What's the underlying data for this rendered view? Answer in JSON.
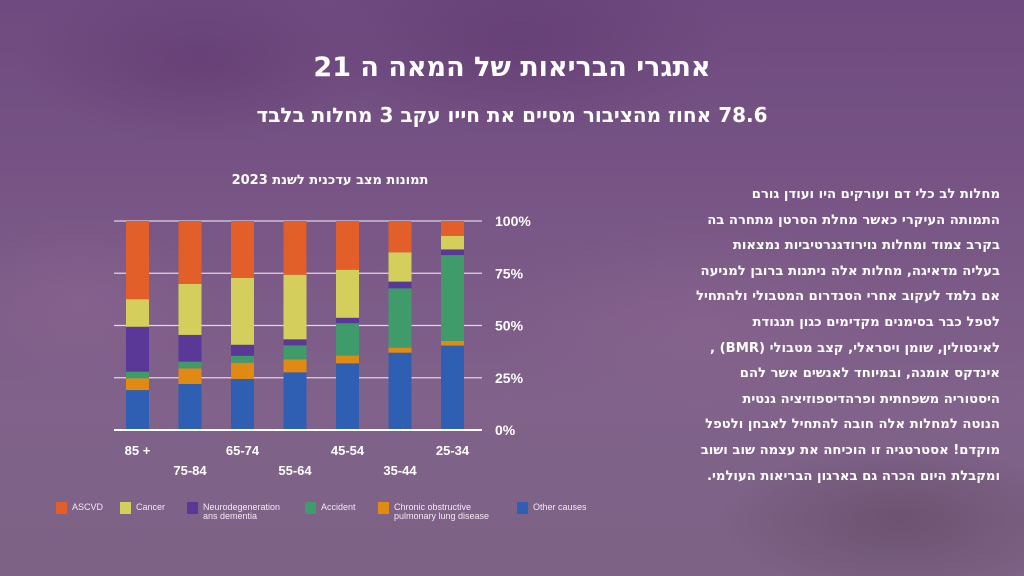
{
  "header": {
    "title": "אתגרי הבריאות של המאה ה 21",
    "subtitle": "78.6 אחוז מהציבור מסיים את חייו עקב 3 מחלות בלבד"
  },
  "paragraph": {
    "lines": [
      "מחלות לב כלי דם ועורקים היו ועודן גורם",
      "התמותה העיקרי כאשר מחלת הסרטן מתחרה בה",
      "בקרב צמוד ומחלות נוירודגנרטיביות נמצאות",
      "בעליה מדאיגה, מחלות אלה ניתנות ברובן למניעה",
      "אם נלמד לעקוב אחרי הסנדרום המטבולי ולהתחיל",
      "לטפל כבר בסימנים מקדימים כגון תנגודת",
      "לאינסולין, שומן ויסראלי, קצב מטבולי (BMR) ,",
      "אינדקס אומגה, ובמיוחד לאנשים אשר להם",
      "היסטוריה משפחתית ופרהדיספוזיציה גנטית",
      "הנוטה למחלות אלה חובה להתחיל לאבחן ולטפל",
      "מוקדם! אסטרטגיה זו הוכיחה את עצמה שוב ושוב",
      "ומקבלת היום הכרה גם בארגון הבריאות העולמי."
    ]
  },
  "chart_data": {
    "type": "bar",
    "stacked": true,
    "title": "תמונות מצב עדכנית לשנת 2023",
    "xlabel": "",
    "ylabel": "",
    "ylim": [
      0,
      100
    ],
    "yticks": [
      "0%",
      "25%",
      "50%",
      "75%",
      "100%"
    ],
    "grid": true,
    "legend_position": "bottom",
    "categories": [
      "85 +",
      "75-84",
      "65-74",
      "55-64",
      "45-54",
      "35-44",
      "25-34"
    ],
    "series": [
      {
        "name": "Other causes",
        "color": "#2f5fb3",
        "values": [
          19.1,
          22.0,
          24.4,
          27.6,
          31.9,
          37.0,
          40.4
        ]
      },
      {
        "name": "Chronic obstructive\npulmonary lung disease",
        "color": "#e08a14",
        "values": [
          5.6,
          7.5,
          7.8,
          6.2,
          3.7,
          2.4,
          2.2
        ]
      },
      {
        "name": "Accident",
        "color": "#3f9b6a",
        "values": [
          3.2,
          3.2,
          3.3,
          6.7,
          15.5,
          28.4,
          41.1
        ]
      },
      {
        "name": "Neurodegeneration\nans dementia",
        "color": "#5a3898",
        "values": [
          21.5,
          12.8,
          5.3,
          2.9,
          2.6,
          3.2,
          2.7
        ]
      },
      {
        "name": "Cancer",
        "color": "#d4cf5c",
        "values": [
          13.2,
          24.4,
          32.0,
          30.9,
          23.0,
          14.0,
          6.5
        ]
      },
      {
        "name": "ASCVD",
        "color": "#e35f2a",
        "values": [
          37.4,
          30.1,
          27.2,
          25.7,
          23.3,
          15.0,
          7.1
        ]
      }
    ],
    "legend_order": [
      "ASCVD",
      "Cancer",
      "Neurodegeneration\nans dementia",
      "Accident",
      "Chronic obstructive\npulmonary lung disease",
      "Other causes"
    ]
  }
}
